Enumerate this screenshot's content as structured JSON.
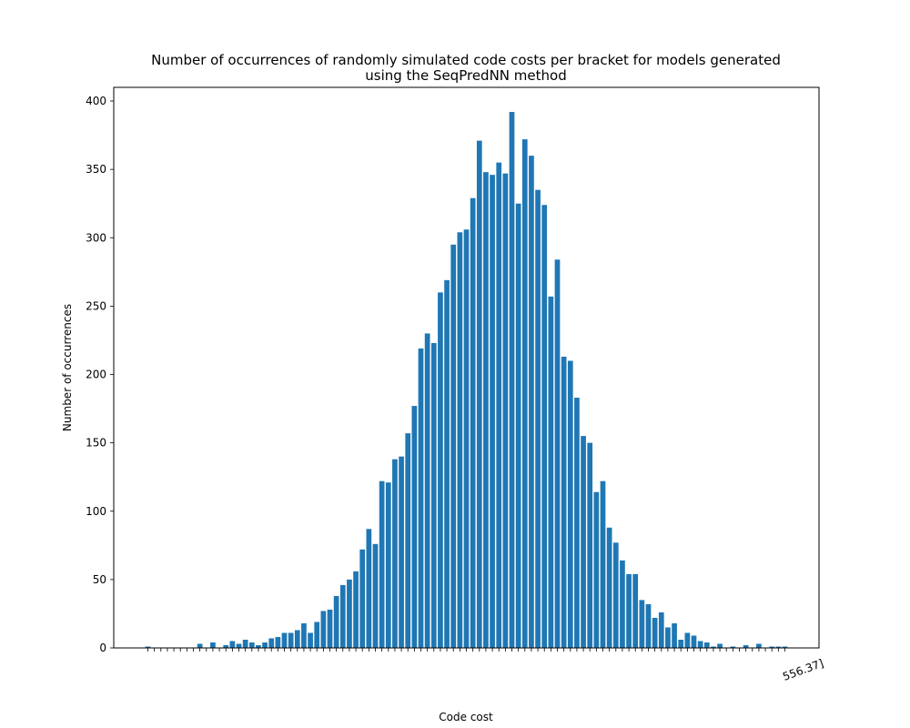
{
  "chart_data": {
    "type": "bar",
    "title": "Number of occurrences of randomly simulated code costs per bracket for models generated",
    "subtitle": "using the SeqPredNN method",
    "xlabel": "Code cost",
    "ylabel": "Number of occurrences",
    "ylim": [
      0,
      410
    ],
    "yticks": [
      0,
      50,
      100,
      150,
      200,
      250,
      300,
      350,
      400
    ],
    "grid": false,
    "bar_color": "#1f77b4",
    "xtick_label_rotation": "about 20 degrees, overlapping and illegible",
    "last_xtick_label_partial": "556.37]",
    "values": [
      1,
      0,
      0,
      0,
      0,
      0,
      0,
      0,
      3,
      0,
      4,
      0,
      2,
      5,
      3,
      6,
      4,
      2,
      4,
      7,
      8,
      11,
      11,
      13,
      18,
      11,
      19,
      27,
      28,
      38,
      46,
      50,
      56,
      72,
      87,
      76,
      122,
      121,
      138,
      140,
      157,
      177,
      219,
      230,
      223,
      260,
      269,
      295,
      304,
      306,
      329,
      371,
      348,
      346,
      355,
      347,
      392,
      325,
      372,
      360,
      335,
      324,
      257,
      284,
      213,
      210,
      183,
      155,
      150,
      114,
      122,
      88,
      77,
      64,
      54,
      54,
      35,
      32,
      22,
      26,
      15,
      18,
      6,
      11,
      9,
      5,
      4,
      1,
      3,
      0,
      1,
      0,
      2,
      0,
      3,
      0,
      1,
      1,
      1
    ]
  }
}
